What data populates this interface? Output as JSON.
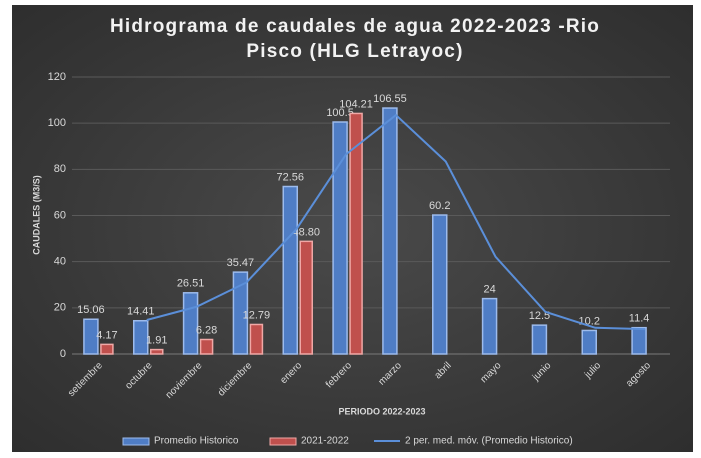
{
  "chart_data": {
    "type": "bar",
    "title": "Hidrograma de caudales  de agua 2022-2023 -Rio Pisco (HLG Letrayoc)",
    "x_label": "PERIODO 2022-2023",
    "y_label": "CAUDALES (M3/S)",
    "categories": [
      "setiembre",
      "octubre",
      "noviembre",
      "diciembre",
      "enero",
      "febrero",
      "marzo",
      "abril",
      "mayo",
      "junio",
      "julio",
      "agosto"
    ],
    "series": [
      {
        "name": "Promedio Historico",
        "type": "bar",
        "color": "#4f7dc5",
        "stroke": "#9dbbec",
        "values": [
          15.06,
          14.41,
          26.51,
          35.47,
          72.56,
          100.5,
          106.55,
          60.2,
          24,
          12.5,
          10.2,
          11.4
        ]
      },
      {
        "name": "2021-2022",
        "type": "bar",
        "color": "#c0504d",
        "stroke": "#f0a8a6",
        "values": [
          4.17,
          1.91,
          6.28,
          12.79,
          48.8,
          104.21,
          null,
          null,
          null,
          null,
          null,
          null
        ],
        "value_labels": [
          "4.17",
          "1.91",
          "6.28",
          "12.79",
          "48.80",
          "104.21",
          null,
          null,
          null,
          null,
          null,
          null
        ]
      },
      {
        "name": "2 per. med. móv. (Promedio Historico)",
        "type": "line",
        "color": "#5b8fd9",
        "values": [
          null,
          14.735,
          20.46,
          30.99,
          54.015,
          86.53,
          103.525,
          83.375,
          42.1,
          18.25,
          11.35,
          10.8
        ]
      }
    ],
    "ylim": [
      0,
      120
    ],
    "yticks": [
      0,
      20,
      40,
      60,
      80,
      100,
      120
    ],
    "grid": true,
    "legend": "bottom"
  }
}
